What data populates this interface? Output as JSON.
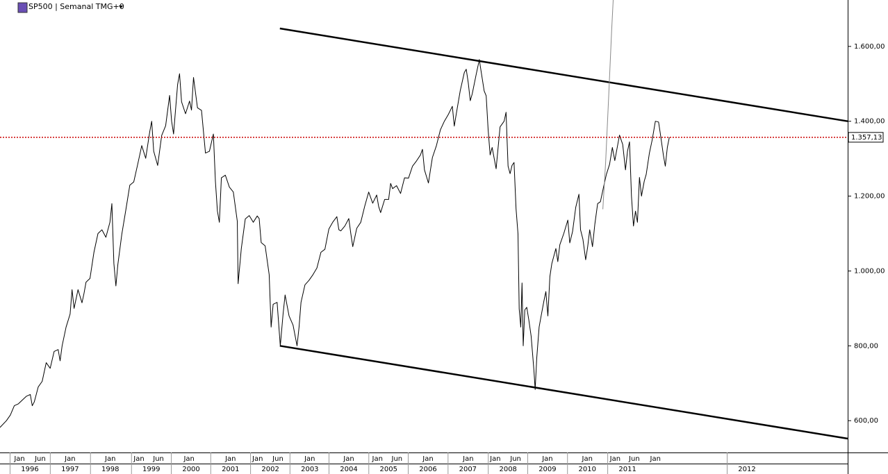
{
  "chart_data": {
    "type": "line",
    "title": "SP500 | Semanal TMG+0",
    "xlim": [
      1995.74,
      2017.03
    ],
    "ylim": [
      515,
      1724
    ],
    "yticks": [
      {
        "value": 600,
        "label": "600,00"
      },
      {
        "value": 800,
        "label": "800,00"
      },
      {
        "value": 1000,
        "label": "1.000,00"
      },
      {
        "value": 1200,
        "label": "1.200,00"
      },
      {
        "value": 1400,
        "label": "1.400,00"
      },
      {
        "value": 1600,
        "label": "1.600,00"
      }
    ],
    "month_ticks": [
      {
        "value": 1996.23,
        "label": "Jan"
      },
      {
        "value": 1996.75,
        "label": "Jun"
      },
      {
        "value": 1997.5,
        "label": "Jan"
      },
      {
        "value": 1998.51,
        "label": "Jan"
      },
      {
        "value": 1999.23,
        "label": "Jan"
      },
      {
        "value": 1999.72,
        "label": "Jun"
      },
      {
        "value": 2000.49,
        "label": "Jan"
      },
      {
        "value": 2001.53,
        "label": "Jan"
      },
      {
        "value": 2002.21,
        "label": "Jan"
      },
      {
        "value": 2002.72,
        "label": "Jun"
      },
      {
        "value": 2003.52,
        "label": "Jan"
      },
      {
        "value": 2004.5,
        "label": "Jan"
      },
      {
        "value": 2005.22,
        "label": "Jan"
      },
      {
        "value": 2005.71,
        "label": "Jun"
      },
      {
        "value": 2006.49,
        "label": "Jan"
      },
      {
        "value": 2007.5,
        "label": "Jan"
      },
      {
        "value": 2008.18,
        "label": "Jan"
      },
      {
        "value": 2008.69,
        "label": "Jun"
      },
      {
        "value": 2009.49,
        "label": "Jan"
      },
      {
        "value": 2010.49,
        "label": "Jan"
      },
      {
        "value": 2011.19,
        "label": "Jan"
      },
      {
        "value": 2011.67,
        "label": "Jun"
      },
      {
        "value": 2012.2,
        "label": "Jan"
      }
    ],
    "xticks": [
      {
        "value": 1996.49,
        "label": "1996"
      },
      {
        "value": 1997.5,
        "label": "1997"
      },
      {
        "value": 1998.51,
        "label": "1998"
      },
      {
        "value": 1999.54,
        "label": "1999"
      },
      {
        "value": 2000.54,
        "label": "2000"
      },
      {
        "value": 2001.53,
        "label": "2001"
      },
      {
        "value": 2002.53,
        "label": "2002"
      },
      {
        "value": 2003.52,
        "label": "2003"
      },
      {
        "value": 2004.5,
        "label": "2004"
      },
      {
        "value": 2005.5,
        "label": "2005"
      },
      {
        "value": 2006.49,
        "label": "2006"
      },
      {
        "value": 2007.49,
        "label": "2007"
      },
      {
        "value": 2008.5,
        "label": "2008"
      },
      {
        "value": 2009.49,
        "label": "2009"
      },
      {
        "value": 2010.49,
        "label": "2010"
      },
      {
        "value": 2011.5,
        "label": "2011"
      },
      {
        "value": 2014.5,
        "label": "2012"
      }
    ],
    "last_price": {
      "value": 1357.13,
      "label": "1.357,13",
      "color": "#cc0000"
    },
    "series": [
      {
        "color": "#000000",
        "line_width": 1,
        "x": [
          1995.74,
          1995.9,
          1996.0,
          1996.1,
          1996.2,
          1996.3,
          1996.4,
          1996.5,
          1996.55,
          1996.6,
          1996.7,
          1996.8,
          1996.9,
          1997.0,
          1997.1,
          1997.2,
          1997.25,
          1997.3,
          1997.4,
          1997.5,
          1997.55,
          1997.6,
          1997.7,
          1997.8,
          1997.85,
          1997.9,
          1998.0,
          1998.1,
          1998.2,
          1998.3,
          1998.4,
          1998.5,
          1998.55,
          1998.6,
          1998.65,
          1998.7,
          1998.8,
          1998.9,
          1999.0,
          1999.1,
          1999.2,
          1999.3,
          1999.4,
          1999.5,
          1999.55,
          1999.6,
          1999.7,
          1999.8,
          1999.9,
          2000.0,
          2000.05,
          2000.1,
          2000.2,
          2000.25,
          2000.3,
          2000.4,
          2000.5,
          2000.55,
          2000.6,
          2000.7,
          2000.8,
          2000.9,
          2001.0,
          2001.1,
          2001.15,
          2001.2,
          2001.25,
          2001.3,
          2001.4,
          2001.5,
          2001.6,
          2001.7,
          2001.72,
          2001.8,
          2001.9,
          2002.0,
          2002.1,
          2002.2,
          2002.25,
          2002.3,
          2002.4,
          2002.5,
          2002.55,
          2002.6,
          2002.7,
          2002.78,
          2002.85,
          2002.9,
          2003.0,
          2003.1,
          2003.2,
          2003.25,
          2003.3,
          2003.4,
          2003.5,
          2003.6,
          2003.7,
          2003.8,
          2003.9,
          2004.0,
          2004.1,
          2004.2,
          2004.25,
          2004.3,
          2004.4,
          2004.5,
          2004.55,
          2004.6,
          2004.7,
          2004.8,
          2004.9,
          2005.0,
          2005.1,
          2005.2,
          2005.25,
          2005.3,
          2005.4,
          2005.5,
          2005.55,
          2005.6,
          2005.7,
          2005.8,
          2005.9,
          2006.0,
          2006.1,
          2006.2,
          2006.3,
          2006.35,
          2006.4,
          2006.5,
          2006.55,
          2006.6,
          2006.7,
          2006.8,
          2006.9,
          2007.0,
          2007.1,
          2007.15,
          2007.2,
          2007.3,
          2007.4,
          2007.45,
          2007.5,
          2007.55,
          2007.6,
          2007.7,
          2007.78,
          2007.8,
          2007.9,
          2007.95,
          2008.0,
          2008.05,
          2008.1,
          2008.2,
          2008.3,
          2008.4,
          2008.45,
          2008.5,
          2008.55,
          2008.6,
          2008.65,
          2008.7,
          2008.75,
          2008.78,
          2008.82,
          2008.85,
          2008.88,
          2008.92,
          2008.97,
          2009.02,
          2009.08,
          2009.15,
          2009.18,
          2009.22,
          2009.28,
          2009.33,
          2009.4,
          2009.45,
          2009.5,
          2009.55,
          2009.6,
          2009.7,
          2009.75,
          2009.8,
          2009.9,
          2010.0,
          2010.05,
          2010.12,
          2010.2,
          2010.28,
          2010.32,
          2010.38,
          2010.45,
          2010.5,
          2010.55,
          2010.62,
          2010.68,
          2010.75,
          2010.82,
          2010.9,
          2010.97,
          2011.05,
          2011.12,
          2011.18,
          2011.25,
          2011.3,
          2011.38,
          2011.45,
          2011.5,
          2011.55,
          2011.6,
          2011.65,
          2011.7,
          2011.75,
          2011.8,
          2011.85,
          2011.92,
          2011.97,
          2012.05,
          2012.12,
          2012.2,
          2012.28,
          2012.32,
          2012.4,
          2012.45,
          2012.5,
          2012.55
        ],
        "values": [
          582,
          600,
          615,
          640,
          645,
          655,
          665,
          670,
          640,
          650,
          690,
          705,
          755,
          740,
          785,
          790,
          760,
          800,
          850,
          885,
          950,
          900,
          950,
          915,
          940,
          970,
          980,
          1050,
          1100,
          1110,
          1090,
          1130,
          1180,
          1020,
          960,
          1017,
          1098,
          1163,
          1229,
          1238,
          1286,
          1335,
          1301,
          1372,
          1400,
          1320,
          1282,
          1362,
          1388,
          1469,
          1400,
          1366,
          1498,
          1527,
          1452,
          1420,
          1454,
          1430,
          1517,
          1436,
          1429,
          1315,
          1320,
          1366,
          1240,
          1160,
          1130,
          1249,
          1256,
          1224,
          1211,
          1133,
          966,
          1060,
          1139,
          1148,
          1130,
          1147,
          1140,
          1076,
          1067,
          990,
          850,
          911,
          916,
          800,
          885,
          936,
          880,
          855,
          800,
          850,
          916,
          963,
          975,
          990,
          1008,
          1050,
          1058,
          1112,
          1131,
          1145,
          1110,
          1107,
          1120,
          1140,
          1101,
          1065,
          1114,
          1130,
          1173,
          1211,
          1181,
          1203,
          1172,
          1156,
          1191,
          1191,
          1234,
          1220,
          1228,
          1207,
          1249,
          1248,
          1280,
          1294,
          1310,
          1325,
          1270,
          1235,
          1270,
          1303,
          1335,
          1377,
          1400,
          1418,
          1440,
          1387,
          1420,
          1482,
          1530,
          1539,
          1503,
          1455,
          1473,
          1526,
          1565,
          1549,
          1481,
          1468,
          1378,
          1310,
          1330,
          1273,
          1385,
          1400,
          1424,
          1280,
          1260,
          1282,
          1290,
          1166,
          1099,
          899,
          850,
          968,
          800,
          896,
          903,
          870,
          826,
          735,
          683,
          768,
          850,
          880,
          920,
          945,
          880,
          985,
          1020,
          1060,
          1025,
          1070,
          1100,
          1136,
          1075,
          1105,
          1170,
          1205,
          1110,
          1085,
          1030,
          1065,
          1110,
          1065,
          1125,
          1180,
          1185,
          1225,
          1258,
          1285,
          1330,
          1295,
          1335,
          1363,
          1338,
          1270,
          1320,
          1345,
          1200,
          1120,
          1160,
          1130,
          1250,
          1200,
          1240,
          1258,
          1315,
          1350,
          1400,
          1398,
          1370,
          1310,
          1280,
          1330,
          1357.13
        ]
      },
      {
        "color": "#000000",
        "line_width": 2.5,
        "x": [
          2002.77,
          2017.03
        ],
        "values": [
          1648,
          1400
        ]
      },
      {
        "color": "#000000",
        "line_width": 2.5,
        "x": [
          2002.77,
          2017.03
        ],
        "values": [
          800,
          552
        ]
      },
      {
        "color": "#888888",
        "line_width": 1,
        "x": [
          2010.88,
          2010.95,
          2011.02,
          2011.1,
          2011.14
        ],
        "values": [
          1165,
          1290,
          1450,
          1640,
          1724
        ]
      }
    ]
  }
}
